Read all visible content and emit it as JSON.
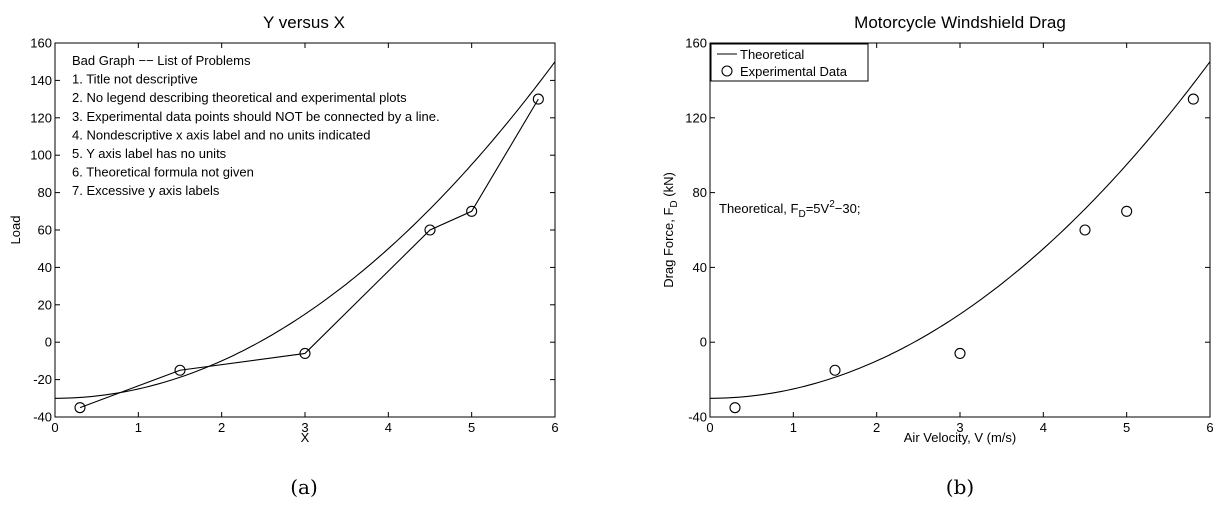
{
  "chart_data": [
    {
      "type": "line",
      "caption": "(a)",
      "title": "Y versus X",
      "xlabel": "X",
      "ylabel": "Load",
      "xlim": [
        0,
        6
      ],
      "ylim": [
        -40,
        160
      ],
      "xticks": [
        0,
        1,
        2,
        3,
        4,
        5,
        6
      ],
      "yticks": [
        -40,
        -20,
        0,
        20,
        40,
        60,
        80,
        100,
        120,
        140,
        160
      ],
      "grid": false,
      "legend": null,
      "series": [
        {
          "kind": "curve",
          "formula": "5*x^2-30",
          "x_range": [
            0,
            6
          ]
        },
        {
          "kind": "markers+line",
          "marker": "circle",
          "x": [
            0.3,
            1.5,
            3,
            4.5,
            5,
            5.8
          ],
          "y": [
            -35,
            -15,
            -6,
            60,
            70,
            130
          ]
        }
      ],
      "annotation": {
        "lines": [
          "Bad Graph −− List of Problems",
          "1. Title not descriptive",
          "2. No legend describing theoretical and experimental plots",
          "3. Experimental data points should NOT be connected by a line.",
          "4. Nondescriptive x axis label and no units indicated",
          "5. Y axis label has no units",
          "6. Theoretical formula not given",
          "7. Excessive y axis labels"
        ]
      }
    },
    {
      "type": "line",
      "caption": "(b)",
      "title": "Motorcycle Windshield Drag",
      "xlabel": "Air Velocity, V (m/s)",
      "ylabel_main": "Drag Force, F",
      "ylabel_sub": "D",
      "ylabel_tail": " (kN)",
      "xlim": [
        0,
        6
      ],
      "ylim": [
        -40,
        160
      ],
      "xticks": [
        0,
        1,
        2,
        3,
        4,
        5,
        6
      ],
      "yticks": [
        -40,
        0,
        40,
        80,
        120,
        160
      ],
      "grid": false,
      "legend_position": "top-left",
      "series": [
        {
          "name": "Theoretical",
          "kind": "curve",
          "formula": "5*x^2-30",
          "x_range": [
            0,
            6
          ]
        },
        {
          "name": "Experimental Data",
          "kind": "markers",
          "marker": "circle",
          "x": [
            0.3,
            1.5,
            3,
            4.5,
            5,
            5.8
          ],
          "y": [
            -35,
            -15,
            -6,
            60,
            70,
            130
          ]
        }
      ],
      "annotation": {
        "prefix": "Theoretical, F",
        "sub": "D",
        "mid": "=5V",
        "sup": "2",
        "suffix": "−30;"
      }
    }
  ]
}
